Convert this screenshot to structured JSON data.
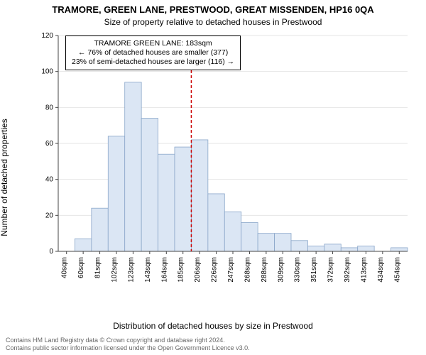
{
  "title": "TRAMORE, GREEN LANE, PRESTWOOD, GREAT MISSENDEN, HP16 0QA",
  "subtitle": "Size of property relative to detached houses in Prestwood",
  "ylabel": "Number of detached properties",
  "xlabel": "Distribution of detached houses by size in Prestwood",
  "footer1": "Contains HM Land Registry data © Crown copyright and database right 2024.",
  "footer2": "Contains public sector information licensed under the Open Government Licence v3.0.",
  "infobox": {
    "line1": "TRAMORE GREEN LANE: 183sqm",
    "line2": "← 76% of detached houses are smaller (377)",
    "line3": "23% of semi-detached houses are larger (116) →"
  },
  "chart": {
    "type": "histogram",
    "background_color": "#ffffff",
    "grid_color": "#e6e6e6",
    "bar_fill": "#dbe6f4",
    "bar_stroke": "#8aa6c9",
    "bar_stroke_width": 0.8,
    "ref_line_color": "#cc0000",
    "ref_line_dash": "4 3",
    "ylim": [
      0,
      120
    ],
    "ytick_step": 20,
    "categories": [
      "40sqm",
      "60sqm",
      "81sqm",
      "102sqm",
      "123sqm",
      "143sqm",
      "164sqm",
      "185sqm",
      "206sqm",
      "226sqm",
      "247sqm",
      "268sqm",
      "288sqm",
      "309sqm",
      "330sqm",
      "351sqm",
      "372sqm",
      "392sqm",
      "413sqm",
      "434sqm",
      "454sqm"
    ],
    "values": [
      0,
      7,
      24,
      64,
      94,
      74,
      54,
      58,
      62,
      32,
      22,
      16,
      10,
      10,
      6,
      3,
      4,
      2,
      3,
      0,
      2
    ],
    "ref_index_after": 7,
    "title_fontsize": 13,
    "subtitle_fontsize": 12,
    "axis_label_fontsize": 12,
    "tick_fontsize": 10,
    "infobox_fontsize": 10.5,
    "footer_fontsize": 9,
    "footer_color": "#666666",
    "text_color": "#000000"
  }
}
